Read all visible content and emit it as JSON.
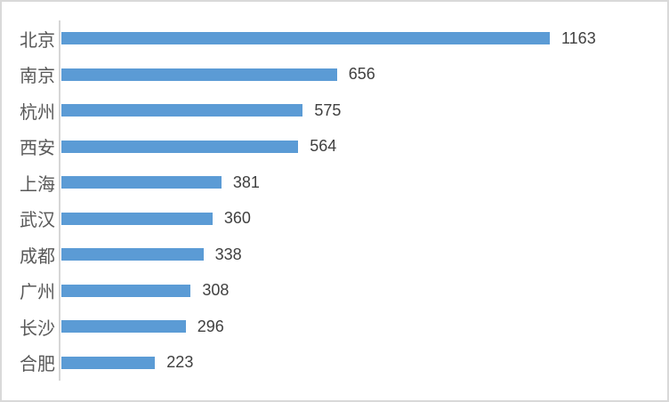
{
  "chart_data": {
    "type": "bar",
    "orientation": "horizontal",
    "title": "",
    "xlabel": "",
    "ylabel": "",
    "categories": [
      "北京",
      "南京",
      "杭州",
      "西安",
      "上海",
      "武汉",
      "成都",
      "广州",
      "长沙",
      "合肥"
    ],
    "values": [
      1163,
      656,
      575,
      564,
      381,
      360,
      338,
      308,
      296,
      223
    ],
    "data_labels": true,
    "grid": false,
    "legend": false,
    "colors": {
      "bar": "#5B9BD5",
      "category_label": "#595959",
      "value_label": "#404040",
      "axis_line": "#D6D6D6",
      "frame_border": "#D9D9D9",
      "background": "#FFFFFF"
    }
  }
}
